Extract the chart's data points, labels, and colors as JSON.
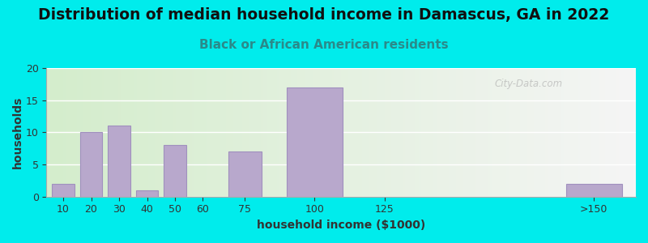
{
  "title": "Distribution of median household income in Damascus, GA in 2022",
  "subtitle": "Black or African American residents",
  "xlabel": "household income ($1000)",
  "ylabel": "households",
  "bar_positions": [
    10,
    20,
    30,
    40,
    50,
    60,
    75,
    100,
    125,
    200
  ],
  "bar_widths": [
    8,
    8,
    8,
    8,
    8,
    8,
    12,
    20,
    8,
    20
  ],
  "xtick_positions": [
    10,
    20,
    30,
    40,
    50,
    60,
    75,
    100,
    125,
    200
  ],
  "xtick_labels": [
    "10",
    "20",
    "30",
    "40",
    "50",
    "60",
    "75",
    "100",
    "125",
    ">150"
  ],
  "values": [
    2,
    10,
    11,
    1,
    8,
    0,
    7,
    17,
    0,
    2
  ],
  "bar_color": "#b8a8cc",
  "bar_edge_color": "#a090be",
  "background_outer": "#00ecec",
  "ylim": [
    0,
    20
  ],
  "yticks": [
    0,
    5,
    10,
    15,
    20
  ],
  "xlim": [
    4,
    215
  ],
  "title_fontsize": 13.5,
  "subtitle_fontsize": 11,
  "axis_label_fontsize": 10,
  "tick_fontsize": 9,
  "watermark": "City-Data.com"
}
